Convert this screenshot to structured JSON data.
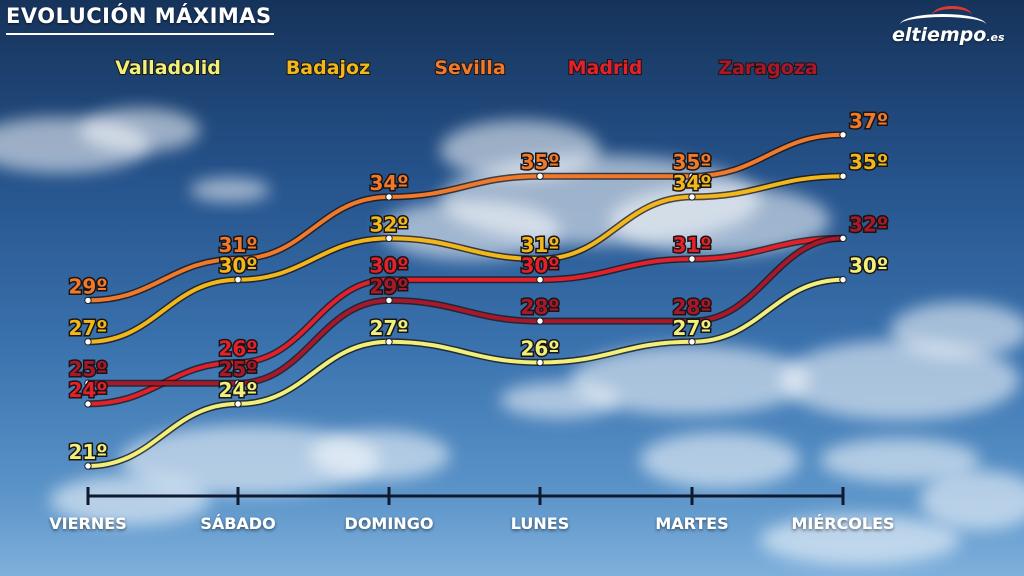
{
  "title": "EVOLUCIÓN MÁXIMAS",
  "logo": {
    "main": "eltiempo",
    "suffix": ".es"
  },
  "chart_data": {
    "type": "line",
    "categories": [
      "VIERNES",
      "SÁBADO",
      "DOMINGO",
      "LUNES",
      "MARTES",
      "MIÉRCOLES"
    ],
    "ylim": [
      20,
      38
    ],
    "grid": false,
    "legend": "top",
    "series": [
      {
        "name": "Valladolid",
        "color": "#f0f07a",
        "values": [
          21,
          24,
          27,
          26,
          27,
          30
        ],
        "labels": [
          "21º",
          "24º",
          "27º",
          "26º",
          "27º",
          "30º"
        ]
      },
      {
        "name": "Badajoz",
        "color": "#f2b81a",
        "values": [
          27,
          30,
          32,
          31,
          34,
          35
        ],
        "labels": [
          "27º",
          "30º",
          "32º",
          "31º",
          "34º",
          "35º"
        ]
      },
      {
        "name": "Sevilla",
        "color": "#f07a2a",
        "values": [
          29,
          31,
          34,
          35,
          35,
          37
        ],
        "labels": [
          "29º",
          "31º",
          "34º",
          "35º",
          "35º",
          "37º"
        ]
      },
      {
        "name": "Madrid",
        "color": "#e4202a",
        "values": [
          24,
          26,
          30,
          30,
          31,
          32
        ],
        "labels": [
          "24º",
          "26º",
          "30º",
          "30º",
          "31º",
          "32º"
        ]
      },
      {
        "name": "Zaragoza",
        "color": "#a8182a",
        "values": [
          25,
          25,
          29,
          28,
          28,
          32
        ],
        "labels": [
          "25º",
          "25º",
          "29º",
          "28º",
          "28º",
          "32º"
        ]
      }
    ]
  }
}
